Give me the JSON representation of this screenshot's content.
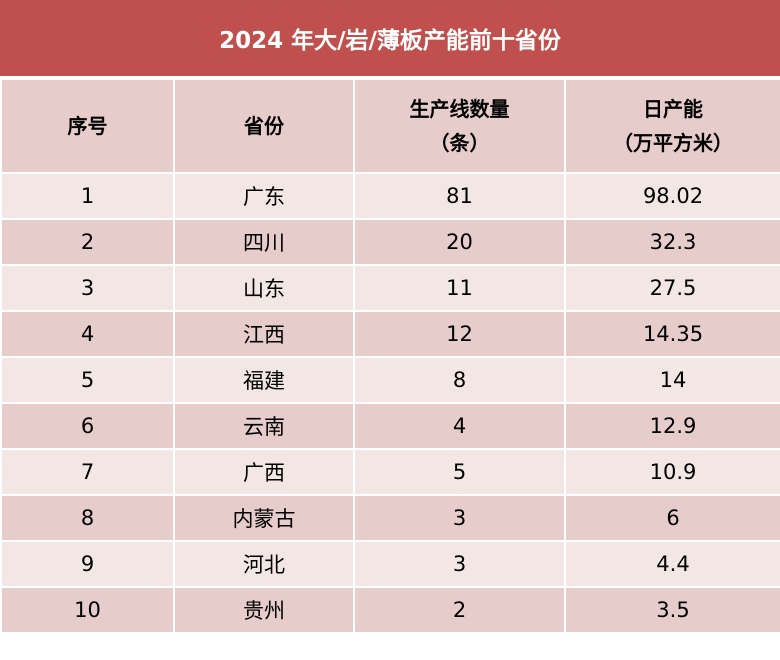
{
  "title": "2024 年大/岩/薄板产能前十省份",
  "headers": {
    "rank": "序号",
    "province": "省份",
    "lines_line1": "生产线数量",
    "lines_line2": "（条）",
    "capacity_line1": "日产能",
    "capacity_line2": "（万平方米）"
  },
  "rows": [
    {
      "rank": "1",
      "province": "广东",
      "lines": "81",
      "capacity": "98.02"
    },
    {
      "rank": "2",
      "province": "四川",
      "lines": "20",
      "capacity": "32.3"
    },
    {
      "rank": "3",
      "province": "山东",
      "lines": "11",
      "capacity": "27.5"
    },
    {
      "rank": "4",
      "province": "江西",
      "lines": "12",
      "capacity": "14.35"
    },
    {
      "rank": "5",
      "province": "福建",
      "lines": "8",
      "capacity": "14"
    },
    {
      "rank": "6",
      "province": "云南",
      "lines": "4",
      "capacity": "12.9"
    },
    {
      "rank": "7",
      "province": "广西",
      "lines": "5",
      "capacity": "10.9"
    },
    {
      "rank": "8",
      "province": "内蒙古",
      "lines": "3",
      "capacity": "6"
    },
    {
      "rank": "9",
      "province": "河北",
      "lines": "3",
      "capacity": "4.4"
    },
    {
      "rank": "10",
      "province": "贵州",
      "lines": "2",
      "capacity": "3.5"
    }
  ],
  "colors": {
    "title_bg": "#c0504d",
    "header_bg": "#e6cccb",
    "row_light": "#f3e7e6",
    "row_dark": "#e6cccb"
  }
}
